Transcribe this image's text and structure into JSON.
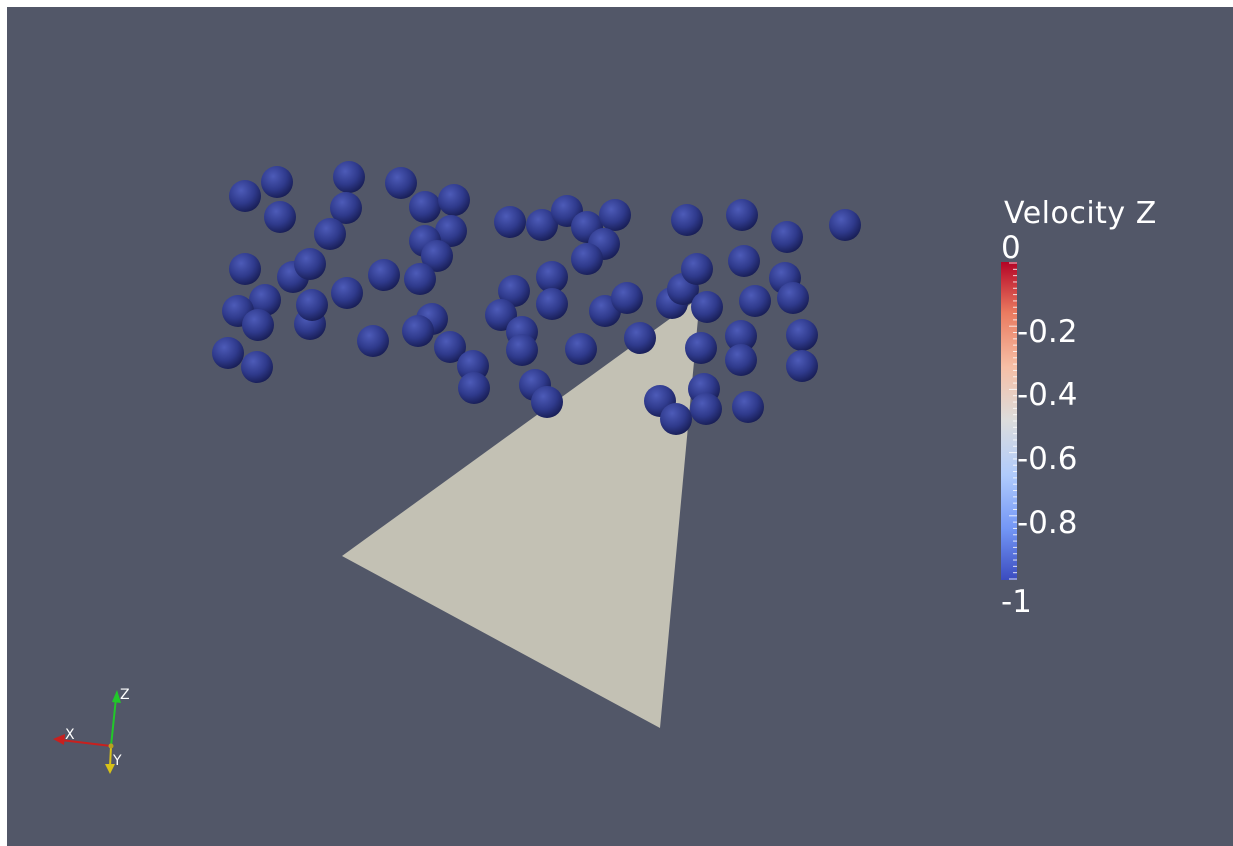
{
  "view": {
    "background": "#525768",
    "particle_color": "#2f3a8c",
    "surface_color": "#c3c1b4"
  },
  "legend": {
    "title": "Velocity Z",
    "min": -1,
    "max": 0,
    "tick_labels": [
      "0",
      "-0.2",
      "-0.4",
      "-0.6",
      "-0.8",
      "-1"
    ],
    "colormap": [
      "#3b4cc0",
      "#7396f5",
      "#b0cbfc",
      "#dcdddd",
      "#f6bfa6",
      "#ea7b60",
      "#b40426"
    ]
  },
  "orientation_axes": {
    "x_label": "X",
    "y_label": "Y",
    "z_label": "Z",
    "x_color": "#c8201e",
    "y_color": "#d8c218",
    "z_color": "#21c829"
  }
}
